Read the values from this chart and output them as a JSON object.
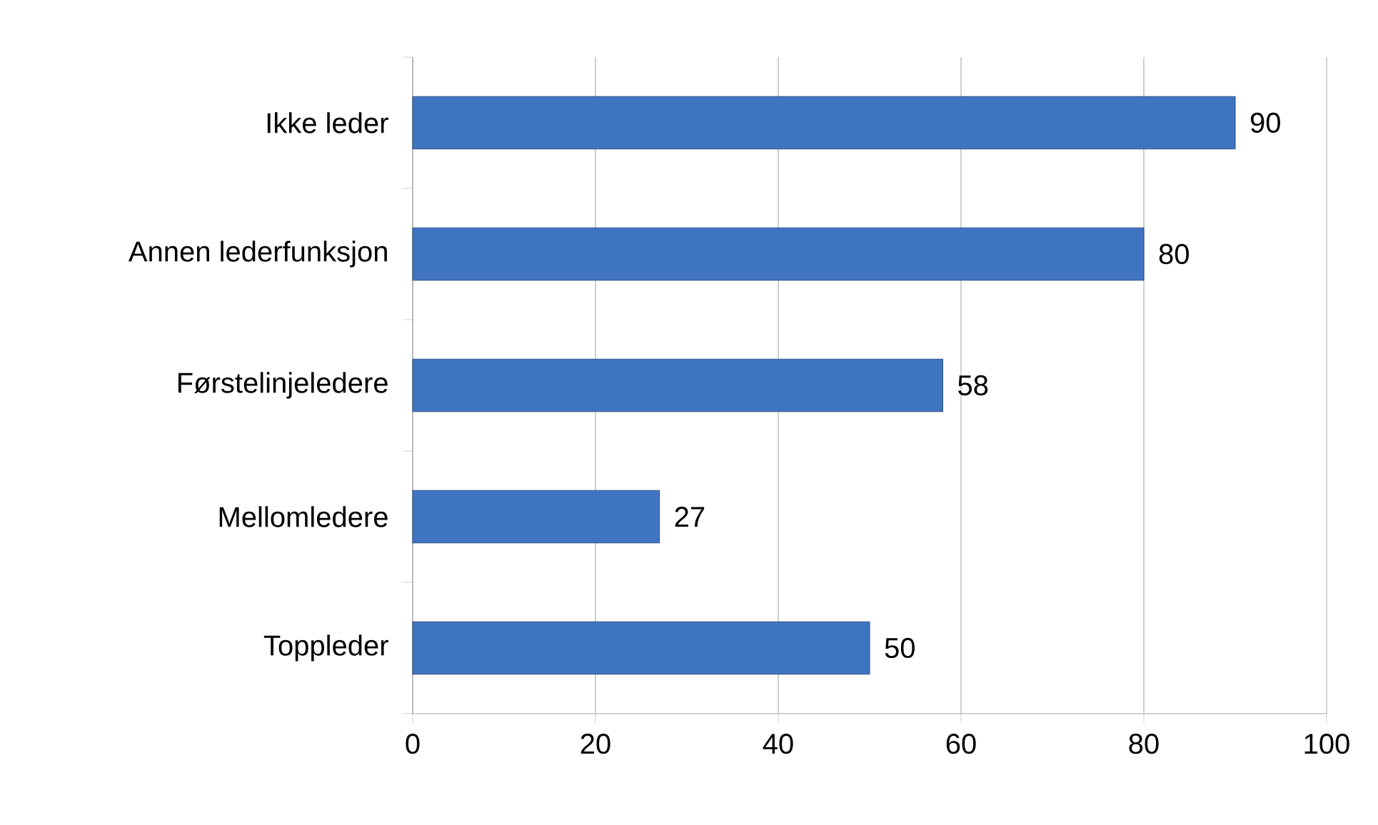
{
  "chart_data": {
    "type": "bar",
    "orientation": "horizontal",
    "categories": [
      "Ikke leder",
      "Annen lederfunksjon",
      "Førstelinjeledere",
      "Mellomledere",
      "Toppleder"
    ],
    "values": [
      90,
      80,
      58,
      27,
      50
    ],
    "color": "#3f74c0",
    "xlim": [
      0,
      100
    ],
    "xticks": [
      0,
      20,
      40,
      60,
      80,
      100
    ],
    "grid": "x",
    "data_labels": true
  }
}
